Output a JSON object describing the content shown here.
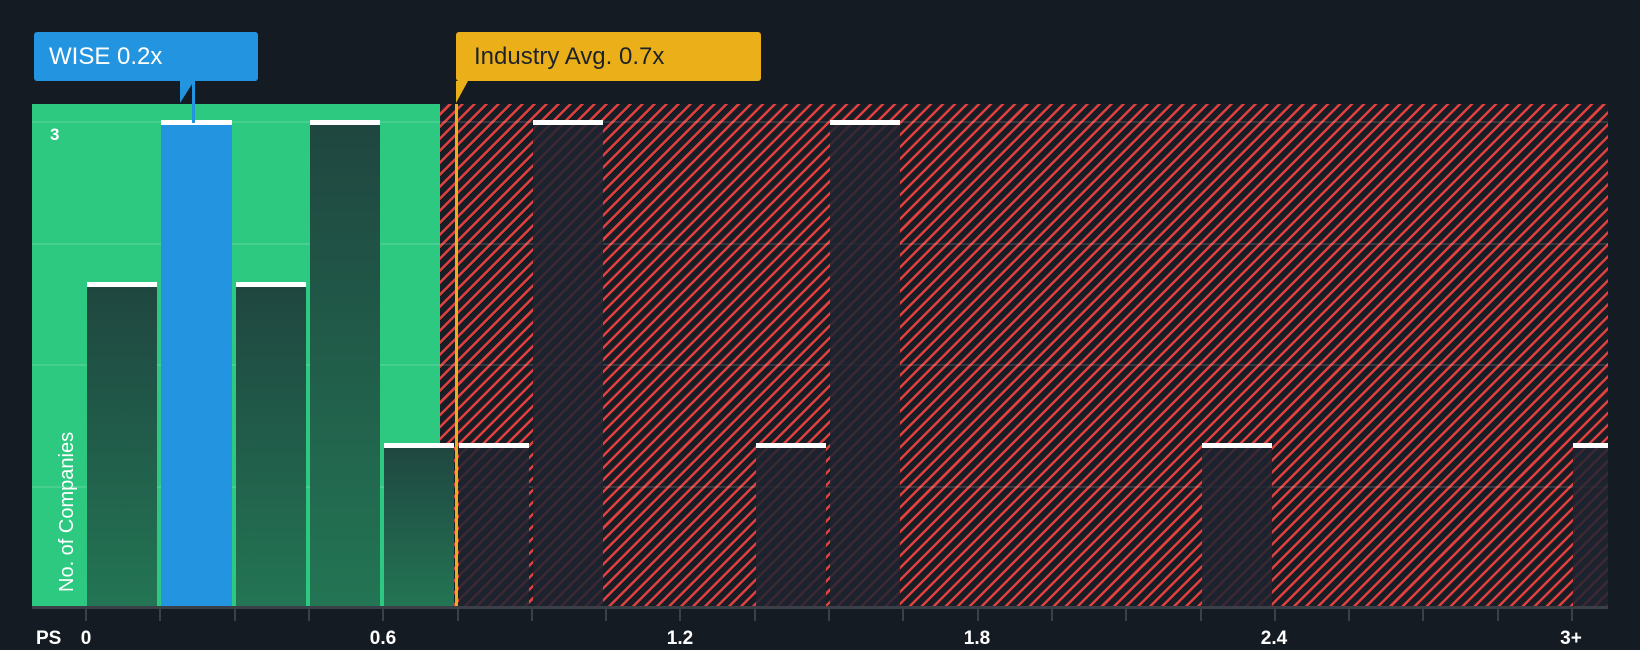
{
  "chart_data": {
    "type": "bar",
    "title": "",
    "xlabel": "PS",
    "ylabel": "No. of Companies",
    "x_tick_labels": [
      "0",
      "0.6",
      "1.2",
      "1.8",
      "2.4",
      "3+"
    ],
    "x_tick_step": 0.15,
    "y_tick_labels": [
      "3"
    ],
    "ylim": [
      0,
      3
    ],
    "bins": [
      {
        "range": "0-0.15",
        "count": 2
      },
      {
        "range": "0.15-0.3",
        "count": 3,
        "highlight": true
      },
      {
        "range": "0.3-0.45",
        "count": 2
      },
      {
        "range": "0.45-0.6",
        "count": 3
      },
      {
        "range": "0.6-0.75",
        "count": 1
      },
      {
        "range": "0.75-0.9",
        "count": 1
      },
      {
        "range": "0.9-1.05",
        "count": 3
      },
      {
        "range": "1.35-1.5",
        "count": 1
      },
      {
        "range": "1.5-1.65",
        "count": 3
      },
      {
        "range": "2.25-2.4",
        "count": 1
      },
      {
        "range": "3+",
        "count": 1
      }
    ],
    "annotations": [
      {
        "label": "WISE 0.2x",
        "value": 0.2,
        "color": "#2394e0"
      },
      {
        "label": "Industry Avg. 0.7x",
        "value": 0.7,
        "color": "#ebb019"
      }
    ],
    "zones": {
      "undervalued_color": "#2ec981",
      "overvalued_color": "#e0413f",
      "boundary": 0.7
    },
    "grid": true,
    "legend": "none"
  },
  "labels": {
    "wise_callout": "WISE 0.2x",
    "industry_callout": "Industry Avg. 0.7x",
    "y_axis": "No. of Companies",
    "y_tick_3": "3",
    "x_axis": "PS",
    "x_ticks": [
      "0",
      "0.6",
      "1.2",
      "1.8",
      "2.4",
      "3+"
    ]
  }
}
